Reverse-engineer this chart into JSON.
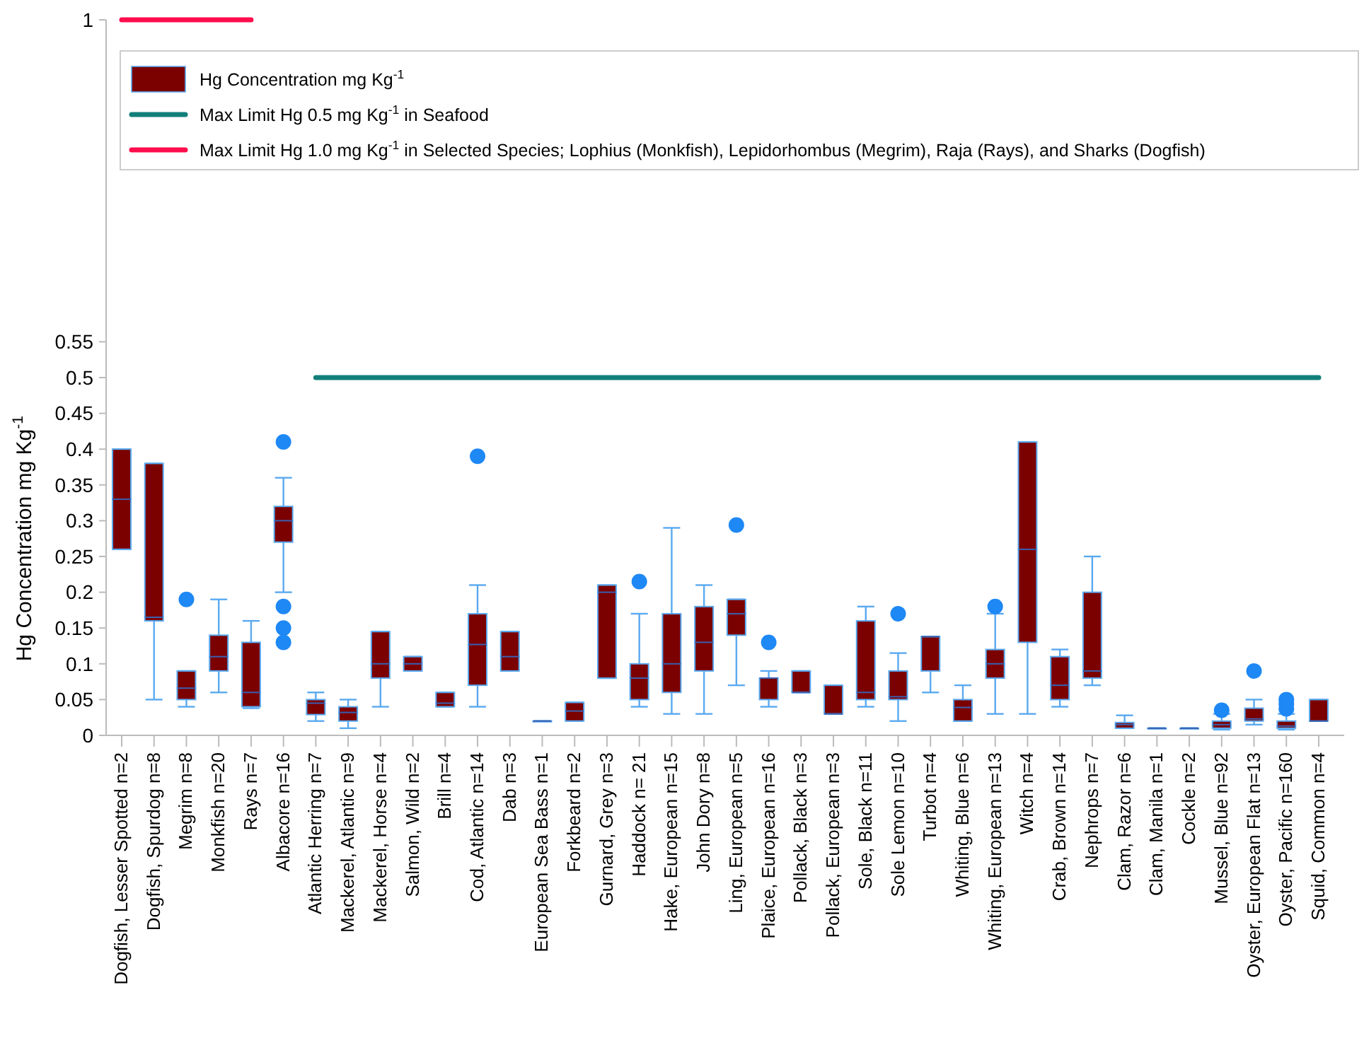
{
  "chart_data": {
    "type": "box",
    "ylabel": "Hg Concentration mg Kg$^{-1}$",
    "categories": [
      "Dogfish, Lesser Spotted n=2",
      "Dogfish, Spurdog n=8",
      "Megrim n=8",
      "Monkfish n=20",
      "Rays n=7",
      "Albacore n=16",
      "Atlantic Herring n=7",
      "Mackerel, Atlantic n=9",
      "Mackerel, Horse n=4",
      "Salmon, Wild n=2",
      "Brill n=4",
      "Cod, Atlantic n=14",
      "Dab n=3",
      "European Sea Bass n=1",
      "Forkbeard n=2",
      "Gurnard, Grey n=3",
      "Haddock n= 21",
      "Hake, European n=15",
      "John Dory n=8",
      "Ling, European n=5",
      "Plaice, European n=16",
      "Pollack, Black n=3",
      "Pollack, European n=3",
      "Sole, Black n=11",
      "Sole Lemon n=10",
      "Turbot n=4",
      "Whiting, Blue n=6",
      "Whiting, European n=13",
      "Witch n=4",
      "Crab, Brown n=14",
      "Nephrops n=7",
      "Clam, Razor n=6",
      "Clam, Manila n=1",
      "Cockle n=2",
      "Mussel, Blue n=92",
      "Oyster, European Flat n=13",
      "Oyster, Pacific n=160",
      "Squid, Common n=4"
    ],
    "ylim": [
      0,
      1
    ],
    "yticks": [
      0,
      0.05,
      0.1,
      0.15,
      0.2,
      0.25,
      0.3,
      0.35,
      0.4,
      0.45,
      0.5,
      0.55,
      1
    ],
    "grid": false,
    "legend": "top",
    "series": [
      {
        "name": "Hg Concentration mg Kg$^{-1}$",
        "color": "#7b0000",
        "boxes": [
          {
            "low": 0.26,
            "q1": 0.26,
            "median": 0.33,
            "q3": 0.4,
            "high": 0.4
          },
          {
            "low": 0.05,
            "q1": 0.16,
            "median": 0.165,
            "q3": 0.38,
            "high": 0.38
          },
          {
            "low": 0.04,
            "q1": 0.05,
            "median": 0.066,
            "q3": 0.09,
            "high": 0.09,
            "outliers": [
              0.19
            ]
          },
          {
            "low": 0.06,
            "q1": 0.09,
            "median": 0.11,
            "q3": 0.14,
            "high": 0.19
          },
          {
            "low": 0.038,
            "q1": 0.04,
            "median": 0.06,
            "q3": 0.13,
            "high": 0.16
          },
          {
            "low": 0.2,
            "q1": 0.27,
            "median": 0.3,
            "q3": 0.32,
            "high": 0.36,
            "outliers": [
              0.41,
              0.18,
              0.15,
              0.13
            ]
          },
          {
            "low": 0.02,
            "q1": 0.029,
            "median": 0.045,
            "q3": 0.05,
            "high": 0.06
          },
          {
            "low": 0.01,
            "q1": 0.02,
            "median": 0.032,
            "q3": 0.04,
            "high": 0.05
          },
          {
            "low": 0.04,
            "q1": 0.08,
            "median": 0.1,
            "q3": 0.145,
            "high": 0.145
          },
          {
            "low": 0.09,
            "q1": 0.09,
            "median": 0.1,
            "q3": 0.11,
            "high": 0.11
          },
          {
            "low": 0.04,
            "q1": 0.04,
            "median": 0.045,
            "q3": 0.06,
            "high": 0.06
          },
          {
            "low": 0.04,
            "q1": 0.07,
            "median": 0.127,
            "q3": 0.17,
            "high": 0.21,
            "outliers": [
              0.39
            ]
          },
          {
            "low": 0.09,
            "q1": 0.09,
            "median": 0.11,
            "q3": 0.145,
            "high": 0.145
          },
          {
            "low": 0.02,
            "q1": 0.02,
            "median": 0.02,
            "q3": 0.02,
            "high": 0.02
          },
          {
            "low": 0.02,
            "q1": 0.02,
            "median": 0.034,
            "q3": 0.046,
            "high": 0.046
          },
          {
            "low": 0.08,
            "q1": 0.08,
            "median": 0.2,
            "q3": 0.21,
            "high": 0.21
          },
          {
            "low": 0.04,
            "q1": 0.05,
            "median": 0.08,
            "q3": 0.1,
            "high": 0.17,
            "outliers": [
              0.215
            ]
          },
          {
            "low": 0.03,
            "q1": 0.06,
            "median": 0.1,
            "q3": 0.17,
            "high": 0.29
          },
          {
            "low": 0.03,
            "q1": 0.09,
            "median": 0.13,
            "q3": 0.18,
            "high": 0.21
          },
          {
            "low": 0.07,
            "q1": 0.14,
            "median": 0.17,
            "q3": 0.19,
            "high": 0.19,
            "outliers": [
              0.294
            ]
          },
          {
            "low": 0.04,
            "q1": 0.05,
            "median": 0.08,
            "q3": 0.08,
            "high": 0.09,
            "outliers": [
              0.13
            ]
          },
          {
            "low": 0.06,
            "q1": 0.06,
            "median": 0.06,
            "q3": 0.09,
            "high": 0.09
          },
          {
            "low": 0.03,
            "q1": 0.03,
            "median": 0.03,
            "q3": 0.07,
            "high": 0.07
          },
          {
            "low": 0.04,
            "q1": 0.05,
            "median": 0.06,
            "q3": 0.16,
            "high": 0.18
          },
          {
            "low": 0.02,
            "q1": 0.05,
            "median": 0.054,
            "q3": 0.09,
            "high": 0.115,
            "outliers": [
              0.17
            ]
          },
          {
            "low": 0.06,
            "q1": 0.09,
            "median": 0.138,
            "q3": 0.138,
            "high": 0.138
          },
          {
            "low": 0.02,
            "q1": 0.02,
            "median": 0.039,
            "q3": 0.05,
            "high": 0.07
          },
          {
            "low": 0.03,
            "q1": 0.08,
            "median": 0.1,
            "q3": 0.12,
            "high": 0.17,
            "outliers": [
              0.18
            ]
          },
          {
            "low": 0.03,
            "q1": 0.13,
            "median": 0.26,
            "q3": 0.41,
            "high": 0.41
          },
          {
            "low": 0.04,
            "q1": 0.05,
            "median": 0.07,
            "q3": 0.11,
            "high": 0.12
          },
          {
            "low": 0.07,
            "q1": 0.08,
            "median": 0.09,
            "q3": 0.2,
            "high": 0.25
          },
          {
            "low": 0.01,
            "q1": 0.01,
            "median": 0.015,
            "q3": 0.018,
            "high": 0.028
          },
          {
            "low": 0.01,
            "q1": 0.01,
            "median": 0.01,
            "q3": 0.01,
            "high": 0.01
          },
          {
            "low": 0.01,
            "q1": 0.01,
            "median": 0.01,
            "q3": 0.01,
            "high": 0.01
          },
          {
            "low": 0.008,
            "q1": 0.01,
            "median": 0.015,
            "q3": 0.02,
            "high": 0.03,
            "outliers": [
              0.035
            ]
          },
          {
            "low": 0.015,
            "q1": 0.02,
            "median": 0.023,
            "q3": 0.038,
            "high": 0.05,
            "outliers": [
              0.09
            ]
          },
          {
            "low": 0.008,
            "q1": 0.01,
            "median": 0.013,
            "q3": 0.02,
            "high": 0.03,
            "outliers": [
              0.05,
              0.044,
              0.037
            ]
          },
          {
            "low": 0.02,
            "q1": 0.02,
            "median": 0.02,
            "q3": 0.05,
            "high": 0.05
          }
        ]
      },
      {
        "type": "line",
        "name": "Max Limit Hg 0.5 mg Kg$^{-1}$ in Seafood",
        "color": "#127f7a",
        "values": [
          null,
          null,
          null,
          null,
          null,
          null,
          0.5,
          0.5,
          0.5,
          0.5,
          0.5,
          0.5,
          0.5,
          0.5,
          0.5,
          0.5,
          0.5,
          0.5,
          0.5,
          0.5,
          0.5,
          0.5,
          0.5,
          0.5,
          0.5,
          0.5,
          0.5,
          0.5,
          0.5,
          0.5,
          0.5,
          0.5,
          0.5,
          0.5,
          0.5,
          0.5,
          0.5,
          0.5
        ]
      },
      {
        "type": "line",
        "name": "Max Limit Hg 1.0 mg Kg$^{-1}$  in Selected Species; Lophius (Monkfish), Lepidorhombus (Megrim), Raja (Rays), and Sharks (Dogfish)",
        "color": "#ff0d4d",
        "values": [
          1,
          1,
          1,
          1,
          1,
          null,
          null,
          null,
          null,
          null,
          null,
          null,
          null,
          null,
          null,
          null,
          null,
          null,
          null,
          null,
          null,
          null,
          null,
          null,
          null,
          null,
          null,
          null,
          null,
          null,
          null,
          null,
          null,
          null,
          null,
          null,
          null,
          null
        ]
      }
    ]
  }
}
